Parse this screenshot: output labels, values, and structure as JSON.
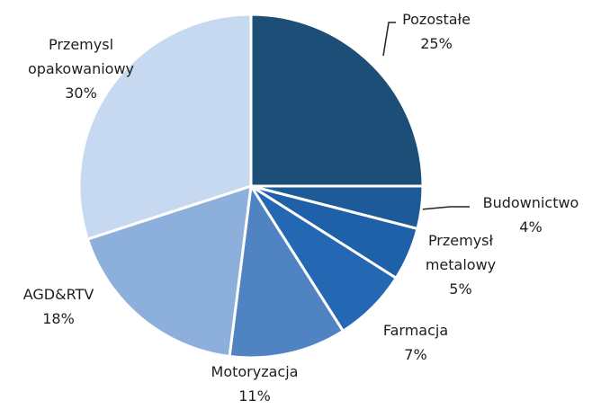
{
  "chart_data": {
    "type": "pie",
    "categories": [
      "Pozostałe",
      "Budownictwo",
      "Przemysł metalowy",
      "Farmacja",
      "Motoryzacja",
      "AGD&RTV",
      "Przemysl opakowaniowy"
    ],
    "values": [
      25,
      4,
      5,
      7,
      11,
      18,
      30
    ],
    "value_labels": [
      "25%",
      "4%",
      "5%",
      "7%",
      "11%",
      "18%",
      "30%"
    ],
    "colors": [
      "#1d4e78",
      "#1d5b98",
      "#1f61a9",
      "#2468b3",
      "#4f83c2",
      "#8dafdb",
      "#c6d9f0"
    ]
  }
}
